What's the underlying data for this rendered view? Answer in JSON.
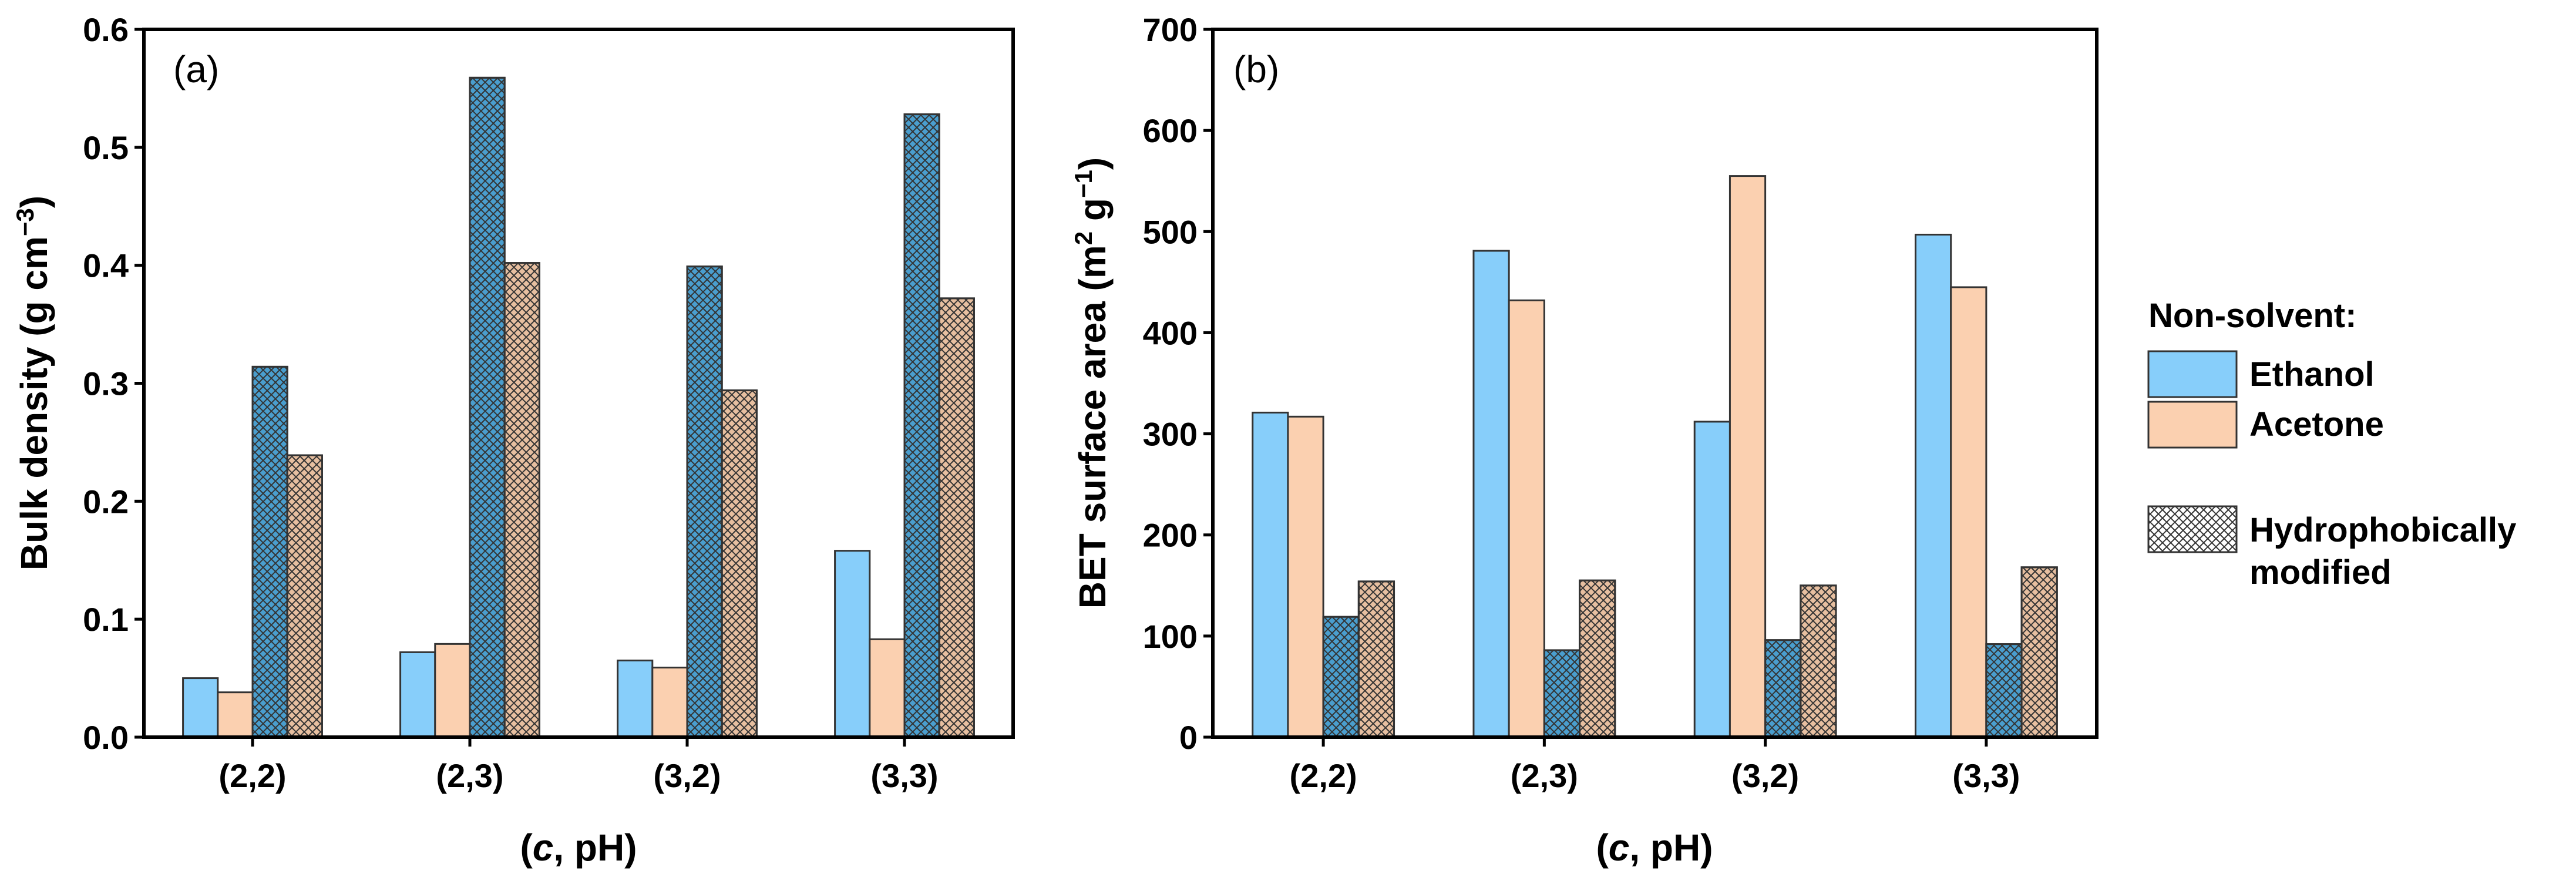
{
  "chart_data": [
    {
      "type": "bar",
      "panel_label": "(a)",
      "categories": [
        "(2,2)",
        "(2,3)",
        "(3,2)",
        "(3,3)"
      ],
      "series": [
        {
          "name": "Ethanol",
          "values": [
            0.05,
            0.072,
            0.065,
            0.158
          ]
        },
        {
          "name": "Acetone",
          "values": [
            0.038,
            0.079,
            0.059,
            0.083
          ]
        },
        {
          "name": "Ethanol, hydrophobically modified",
          "values": [
            0.314,
            0.559,
            0.399,
            0.528
          ]
        },
        {
          "name": "Acetone, hydrophobically modified",
          "values": [
            0.239,
            0.402,
            0.294,
            0.372
          ]
        }
      ],
      "ylim": [
        0,
        0.6
      ],
      "yticks": [
        "0.0",
        "0.1",
        "0.2",
        "0.3",
        "0.4",
        "0.5",
        "0.6"
      ],
      "ylabel_main": "Bulk density (g cm",
      "ylabel_sup": "−3",
      "ylabel_close": ")",
      "xlabel_open": "(",
      "xlabel_italic": "c",
      "xlabel_rest": ", pH)"
    },
    {
      "type": "bar",
      "panel_label": "(b)",
      "categories": [
        "(2,2)",
        "(2,3)",
        "(3,2)",
        "(3,3)"
      ],
      "series": [
        {
          "name": "Ethanol",
          "values": [
            321,
            481,
            312,
            497
          ]
        },
        {
          "name": "Acetone",
          "values": [
            317,
            432,
            555,
            445
          ]
        },
        {
          "name": "Ethanol, hydrophobically modified",
          "values": [
            119,
            86,
            96,
            92
          ]
        },
        {
          "name": "Acetone, hydrophobically modified",
          "values": [
            154,
            155,
            150,
            168
          ]
        }
      ],
      "ylim": [
        0,
        700
      ],
      "yticks": [
        "0",
        "100",
        "200",
        "300",
        "400",
        "500",
        "600",
        "700"
      ],
      "ylabel_main": "BET surface area (m",
      "ylabel_sup1": "2",
      "ylabel_mid": " g",
      "ylabel_sup2": "−1",
      "ylabel_close": ")",
      "xlabel_open": "(",
      "xlabel_italic": "c",
      "xlabel_rest": ", pH)"
    }
  ],
  "legend": {
    "title": "Non-solvent:",
    "entries": [
      "Ethanol",
      "Acetone"
    ],
    "hatch_label_line1": "Hydrophobically",
    "hatch_label_line2": "modified"
  },
  "colors": {
    "ethanol": "#87CEFA",
    "acetone": "#FBD0B0",
    "ethanol_hatched": "#4A9ECE",
    "acetone_hatched": "#E7BFA0",
    "hatch_line": "#333333",
    "edge": "#333333"
  }
}
